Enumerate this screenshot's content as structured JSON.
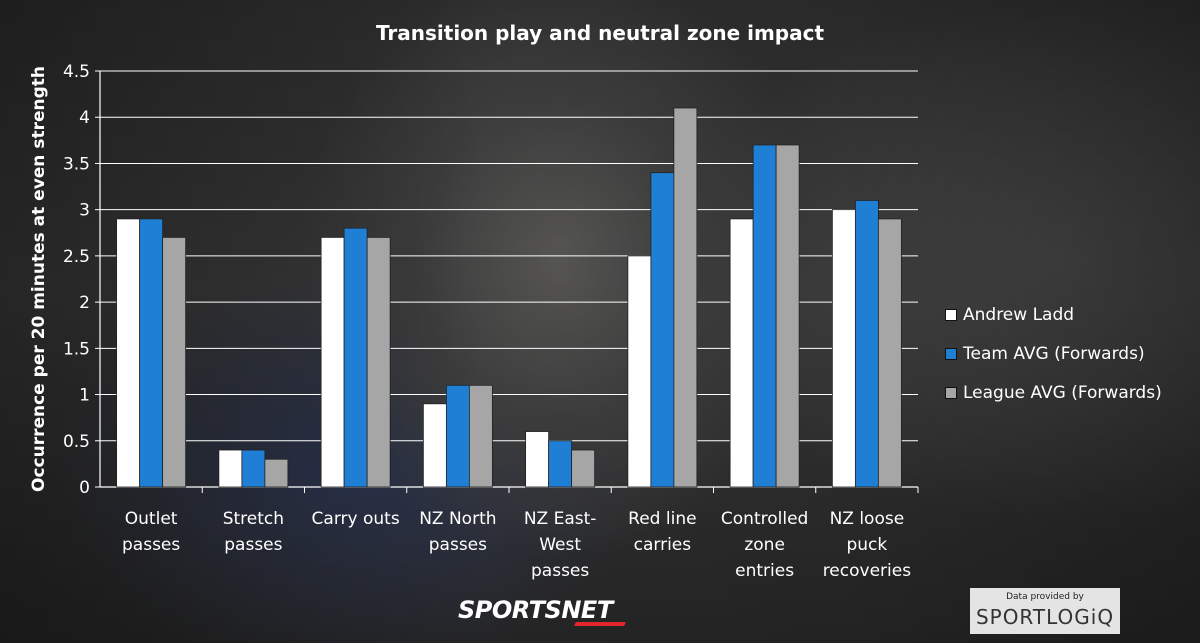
{
  "chart_data": {
    "type": "bar",
    "title": "Transition play and neutral zone impact",
    "ylabel": "Occurrence per 20 minutes at even strength",
    "xlabel": "",
    "ylim": [
      0,
      4.5
    ],
    "y_ticks": [
      "0",
      "0.5",
      "1",
      "1.5",
      "2",
      "2.5",
      "3",
      "3.5",
      "4",
      "4.5"
    ],
    "grid": true,
    "legend_position": "right",
    "categories": [
      [
        "Outlet",
        "passes"
      ],
      [
        "Stretch",
        "passes"
      ],
      [
        "Carry outs"
      ],
      [
        "NZ North",
        "passes"
      ],
      [
        "NZ East-",
        "West",
        "passes"
      ],
      [
        "Red line",
        "carries"
      ],
      [
        "Controlled",
        "zone",
        "entries"
      ],
      [
        "NZ loose",
        "puck",
        "recoveries"
      ]
    ],
    "series": [
      {
        "name": "Andrew Ladd",
        "color": "#ffffff",
        "values": [
          2.9,
          0.4,
          2.7,
          0.9,
          0.6,
          2.5,
          2.9,
          3.0
        ]
      },
      {
        "name": "Team AVG (Forwards)",
        "color": "#1f7fd4",
        "values": [
          2.9,
          0.4,
          2.8,
          1.1,
          0.5,
          3.4,
          3.7,
          3.1
        ]
      },
      {
        "name": "League AVG (Forwards)",
        "color": "#a6a6a6",
        "values": [
          2.7,
          0.3,
          2.7,
          1.1,
          0.4,
          4.1,
          3.7,
          2.9
        ]
      }
    ]
  },
  "footer": {
    "brand": "SPORTSNET",
    "credit_label": "Data provided by",
    "credit_logo": "SPORTLOGiQ"
  }
}
